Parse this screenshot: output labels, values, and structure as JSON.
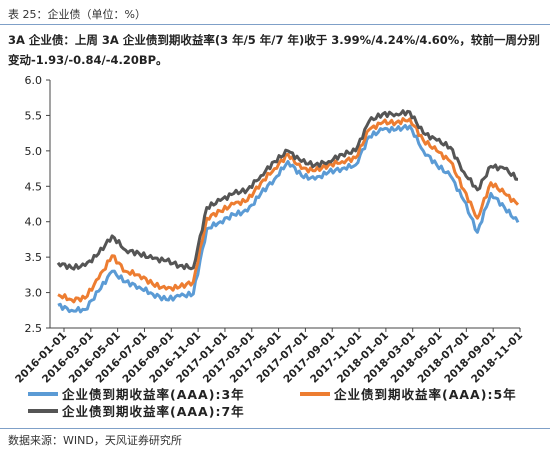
{
  "caption": "表 25：企业债（单位：%）",
  "description": "3A 企业债：上周 3A 企业债到期收益率(3 年/5 年/7 年)收于 3.99%/4.24%/4.60%，较前一周分别变动-1.93/-0.84/-4.20BP。",
  "source": "数据来源：WIND，天风证券研究所",
  "chart_data": {
    "type": "line",
    "title": "",
    "xlabel": "",
    "ylabel": "",
    "ylim": [
      2.5,
      6.0
    ],
    "y_ticks": [
      "2.5",
      "3.0",
      "3.5",
      "4.0",
      "4.5",
      "5.0",
      "5.5",
      "6.0"
    ],
    "x_ticks": [
      "2016-01-01",
      "2016-03-01",
      "2016-05-01",
      "2016-07-01",
      "2016-09-01",
      "2016-11-01",
      "2017-01-01",
      "2017-03-01",
      "2017-05-01",
      "2017-07-01",
      "2017-09-01",
      "2017-11-01",
      "2018-01-01",
      "2018-03-01",
      "2018-05-01",
      "2018-07-01",
      "2018-09-01",
      "2018-11-01"
    ],
    "grid": false,
    "legend_position": "bottom",
    "x": [
      "2016-01",
      "2016-02",
      "2016-03",
      "2016-04",
      "2016-05",
      "2016-06",
      "2016-07",
      "2016-08",
      "2016-09",
      "2016-10",
      "2016-11",
      "2016-12",
      "2017-01",
      "2017-02",
      "2017-03",
      "2017-04",
      "2017-05",
      "2017-06",
      "2017-07",
      "2017-08",
      "2017-09",
      "2017-10",
      "2017-11",
      "2017-12",
      "2018-01",
      "2018-02",
      "2018-03",
      "2018-04",
      "2018-05",
      "2018-06",
      "2018-07",
      "2018-08",
      "2018-09",
      "2018-10",
      "2018-11"
    ],
    "series": [
      {
        "name": "企业债到期收益率(AAA):3年",
        "color": "#5b9bd5",
        "values": [
          2.82,
          2.75,
          2.76,
          3.02,
          3.3,
          3.15,
          3.08,
          2.98,
          2.9,
          2.95,
          2.98,
          3.9,
          4.0,
          4.1,
          4.15,
          4.4,
          4.6,
          4.85,
          4.65,
          4.6,
          4.7,
          4.75,
          4.8,
          5.2,
          5.3,
          5.3,
          5.35,
          5.0,
          4.8,
          4.65,
          4.3,
          3.85,
          4.4,
          4.2,
          3.99
        ]
      },
      {
        "name": "企业债到期收益率(AAA):5年",
        "color": "#ed7d31",
        "values": [
          2.97,
          2.9,
          2.92,
          3.2,
          3.52,
          3.3,
          3.25,
          3.12,
          3.05,
          3.08,
          3.15,
          4.05,
          4.15,
          4.25,
          4.3,
          4.55,
          4.75,
          4.95,
          4.75,
          4.72,
          4.8,
          4.85,
          4.9,
          5.3,
          5.4,
          5.4,
          5.45,
          5.15,
          5.0,
          4.85,
          4.45,
          4.05,
          4.55,
          4.4,
          4.24
        ]
      },
      {
        "name": "企业债到期收益率(AAA):7年",
        "color": "#555555",
        "values": [
          3.42,
          3.35,
          3.38,
          3.55,
          3.8,
          3.6,
          3.55,
          3.48,
          3.45,
          3.38,
          3.35,
          4.2,
          4.3,
          4.4,
          4.45,
          4.65,
          4.85,
          5.0,
          4.85,
          4.8,
          4.85,
          4.95,
          5.0,
          5.42,
          5.52,
          5.52,
          5.55,
          5.25,
          5.15,
          5.05,
          4.7,
          4.45,
          4.78,
          4.75,
          4.6
        ]
      }
    ]
  }
}
